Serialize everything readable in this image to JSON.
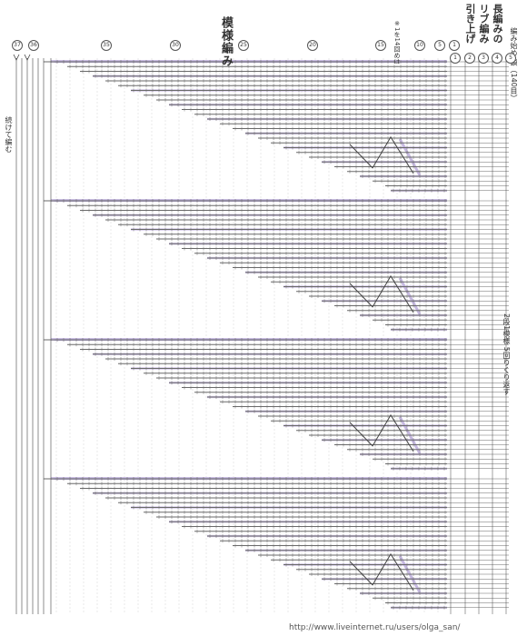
{
  "title": "模様編み",
  "subtitle_right": [
    "長編みの",
    "リブ編み",
    "引き上げ"
  ],
  "note_top": "※1を14回めは巻き糸で編む",
  "start_label": "編み始め 鎖（140目）",
  "repeat_label": "2段1模様 5回りくり返す",
  "continue_label": "続けて編む",
  "footer_url": "http://www.liveinternet.ru/users/olga_san/",
  "row_numbers_top": [
    "37",
    "36",
    "35",
    "30",
    "25",
    "20",
    "15",
    "10",
    "5",
    "1"
  ],
  "row_numbers_right": [
    "1",
    "2",
    "3",
    "4",
    "5"
  ],
  "colors": {
    "stitch": "#6a6a6a",
    "highlight": "#b8a8d8",
    "line": "#444444"
  },
  "blocks": 4
}
